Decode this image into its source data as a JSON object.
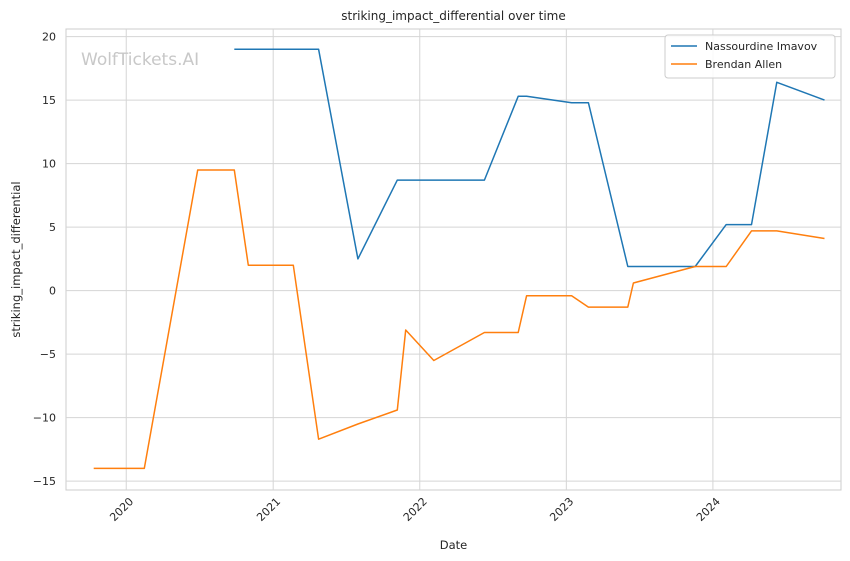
{
  "chart_data": {
    "type": "line",
    "title": "striking_impact_differential over time",
    "xlabel": "Date",
    "ylabel": "striking_impact_differential",
    "watermark": "WolfTickets.AI",
    "x_axis": "date",
    "xlim": [
      "2019-08-04",
      "2024-11-15"
    ],
    "ylim": [
      -15.7,
      20.6
    ],
    "x_ticks": [
      "2020-01-01",
      "2021-01-01",
      "2022-01-01",
      "2023-01-01",
      "2024-01-01"
    ],
    "x_tick_labels": [
      "2020",
      "2021",
      "2022",
      "2023",
      "2024"
    ],
    "y_ticks": [
      20,
      15,
      10,
      5,
      0,
      -5,
      -10,
      -15
    ],
    "y_tick_labels": [
      "20",
      "15",
      "10",
      "5",
      "0",
      "−5",
      "−10",
      "−15"
    ],
    "grid": true,
    "legend_position": "top-right",
    "series": [
      {
        "name": "Nassourdine Imavov",
        "color": "#1f77b4",
        "points": [
          {
            "x": "2020-09-26",
            "y": 19.0
          },
          {
            "x": "2021-04-24",
            "y": 19.0
          },
          {
            "x": "2021-07-31",
            "y": 2.5
          },
          {
            "x": "2021-11-06",
            "y": 8.7
          },
          {
            "x": "2022-06-11",
            "y": 8.7
          },
          {
            "x": "2022-09-03",
            "y": 15.3
          },
          {
            "x": "2022-09-24",
            "y": 15.3
          },
          {
            "x": "2023-01-14",
            "y": 14.8
          },
          {
            "x": "2023-02-25",
            "y": 14.8
          },
          {
            "x": "2023-06-03",
            "y": 1.9
          },
          {
            "x": "2023-11-18",
            "y": 1.9
          },
          {
            "x": "2024-02-03",
            "y": 5.2
          },
          {
            "x": "2024-04-06",
            "y": 5.2
          },
          {
            "x": "2024-06-08",
            "y": 16.4
          },
          {
            "x": "2024-10-05",
            "y": 15.0
          }
        ]
      },
      {
        "name": "Brendan Allen",
        "color": "#ff7f0e",
        "points": [
          {
            "x": "2019-10-12",
            "y": -14.0
          },
          {
            "x": "2020-02-15",
            "y": -14.0
          },
          {
            "x": "2020-06-27",
            "y": 9.5
          },
          {
            "x": "2020-09-26",
            "y": 9.5
          },
          {
            "x": "2020-10-31",
            "y": 2.0
          },
          {
            "x": "2021-02-20",
            "y": 2.0
          },
          {
            "x": "2021-04-24",
            "y": -11.7
          },
          {
            "x": "2021-07-31",
            "y": -10.5
          },
          {
            "x": "2021-11-06",
            "y": -9.4
          },
          {
            "x": "2021-11-27",
            "y": -3.1
          },
          {
            "x": "2022-02-05",
            "y": -5.5
          },
          {
            "x": "2022-06-11",
            "y": -3.3
          },
          {
            "x": "2022-09-03",
            "y": -3.3
          },
          {
            "x": "2022-09-24",
            "y": -0.4
          },
          {
            "x": "2023-01-14",
            "y": -0.4
          },
          {
            "x": "2023-02-25",
            "y": -1.3
          },
          {
            "x": "2023-06-03",
            "y": -1.3
          },
          {
            "x": "2023-06-17",
            "y": 0.6
          },
          {
            "x": "2023-11-18",
            "y": 1.9
          },
          {
            "x": "2024-02-03",
            "y": 1.9
          },
          {
            "x": "2024-04-06",
            "y": 4.7
          },
          {
            "x": "2024-06-08",
            "y": 4.7
          },
          {
            "x": "2024-10-05",
            "y": 4.1
          }
        ]
      }
    ]
  }
}
